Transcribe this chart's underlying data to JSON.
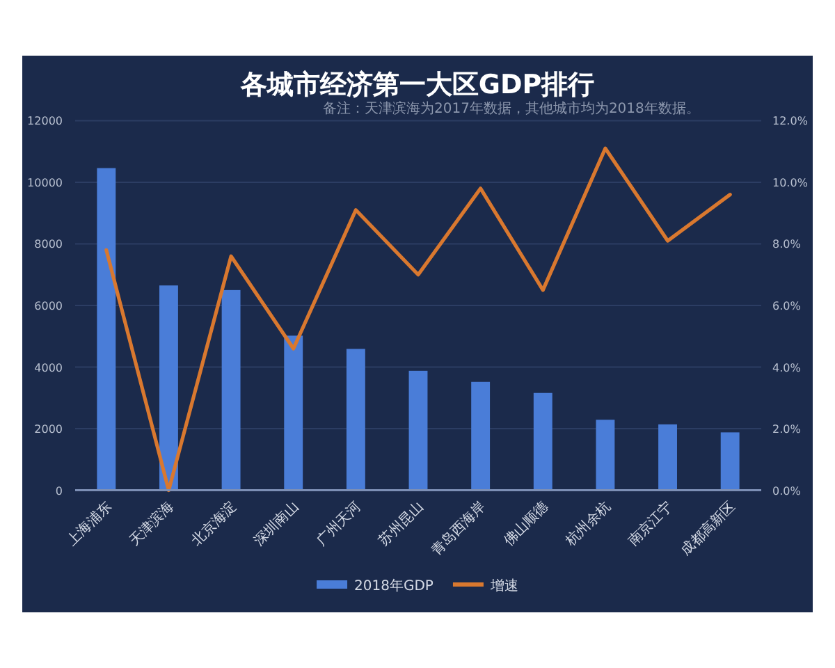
{
  "chart_data": {
    "type": "bar",
    "title": "各城市经济第一大区GDP排行",
    "annotations": [
      "备注：天津滨海为2017年数据，其他城市均为2018年数据。"
    ],
    "categories": [
      "上海浦东",
      "天津滨海",
      "北京海淀",
      "深圳南山",
      "广州天河",
      "苏州昆山",
      "青岛西海岸",
      "佛山顺德",
      "杭州余杭",
      "南京江宁",
      "成都高新区"
    ],
    "series": [
      {
        "name": "2018年GDP",
        "type": "bar",
        "color": "#4a7dd8",
        "values": [
          10460,
          6650,
          6500,
          5020,
          4590,
          3880,
          3520,
          3160,
          2290,
          2140,
          1880
        ]
      },
      {
        "name": "增速",
        "type": "line",
        "axis": "y2",
        "color": "#d9782f",
        "values": [
          7.8,
          0,
          7.6,
          4.6,
          9.1,
          7.0,
          9.8,
          6.5,
          11.1,
          8.1,
          9.6
        ]
      }
    ],
    "ylim": [
      0,
      12000
    ],
    "yticks": [
      0,
      2000,
      4000,
      6000,
      8000,
      10000,
      12000
    ],
    "y2lim": [
      0,
      12
    ],
    "y2ticks": [
      {
        "value": 0,
        "label": "0.0%"
      },
      {
        "value": 2,
        "label": "2.0%"
      },
      {
        "value": 4,
        "label": "4.0%"
      },
      {
        "value": 6,
        "label": "6.0%"
      },
      {
        "value": 8,
        "label": "8.0%"
      },
      {
        "value": 10,
        "label": "10.0%"
      },
      {
        "value": 12,
        "label": "12.0%"
      }
    ],
    "grid": "y",
    "legend": "bottom"
  }
}
